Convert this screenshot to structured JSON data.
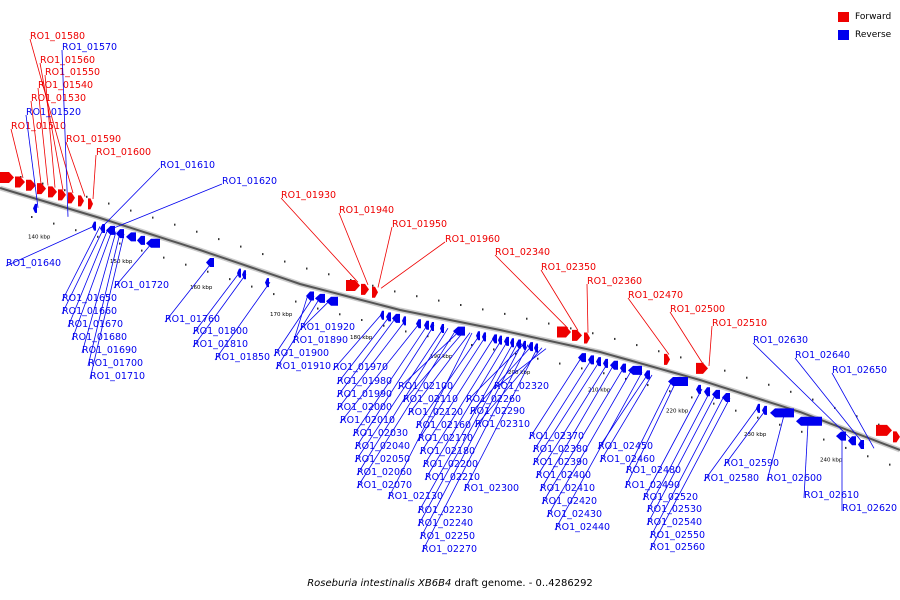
{
  "colors": {
    "forward": "#ee0000",
    "reverse": "#0000ee",
    "backbone": "#555555"
  },
  "legend": {
    "forward_label": "Forward",
    "reverse_label": "Reverse"
  },
  "caption": {
    "organism": "Roseburia intestinalis XB6B4",
    "rest": " draft genome. - 0..4286292"
  },
  "scale_labels": [
    "140 kbp",
    "150 kbp",
    "160 kbp",
    "170 kbp",
    "180 kbp",
    "190 kbp",
    "200 kbp",
    "210 kbp",
    "220 kbp",
    "230 kbp",
    "240 kbp"
  ],
  "forward_labels": [
    "RO1_01580",
    "RO1_01560",
    "RO1_01550",
    "RO1_01540",
    "RO1_01530",
    "RO1_01510",
    "RO1_01590",
    "RO1_01600",
    "RO1_01930",
    "RO1_01940",
    "RO1_01950",
    "RO1_01960",
    "RO1_02340",
    "RO1_02350",
    "RO1_02360",
    "RO1_02470",
    "RO1_02500",
    "RO1_02510"
  ],
  "reverse_labels": [
    "RO1_01570",
    "RO1_01520",
    "RO1_01610",
    "RO1_01620",
    "RO1_01640",
    "RO1_01650",
    "RO1_01660",
    "RO1_01670",
    "RO1_01680",
    "RO1_01690",
    "RO1_01700",
    "RO1_01710",
    "RO1_01720",
    "RO1_01760",
    "RO1_01800",
    "RO1_01810",
    "RO1_01850",
    "RO1_01890",
    "RO1_01900",
    "RO1_01910",
    "RO1_01920",
    "RO1_01970",
    "RO1_01980",
    "RO1_01990",
    "RO1_02000",
    "RO1_02010",
    "RO1_02030",
    "RO1_02040",
    "RO1_02050",
    "RO1_02060",
    "RO1_02070",
    "RO1_02100",
    "RO1_02110",
    "RO1_02120",
    "RO1_02130",
    "RO1_02160",
    "RO1_02170",
    "RO1_02180",
    "RO1_02200",
    "RO1_02210",
    "RO1_02230",
    "RO1_02240",
    "RO1_02250",
    "RO1_02260",
    "RO1_02270",
    "RO1_02290",
    "RO1_02300",
    "RO1_02310",
    "RO1_02320",
    "RO1_02370",
    "RO1_02380",
    "RO1_02390",
    "RO1_02400",
    "RO1_02410",
    "RO1_02420",
    "RO1_02430",
    "RO1_02440",
    "RO1_02450",
    "RO1_02460",
    "RO1_02480",
    "RO1_02490",
    "RO1_02520",
    "RO1_02530",
    "RO1_02540",
    "RO1_02550",
    "RO1_02560",
    "RO1_02580",
    "RO1_02590",
    "RO1_02600",
    "RO1_02610",
    "RO1_02620",
    "RO1_02630",
    "RO1_02640",
    "RO1_02650"
  ]
}
